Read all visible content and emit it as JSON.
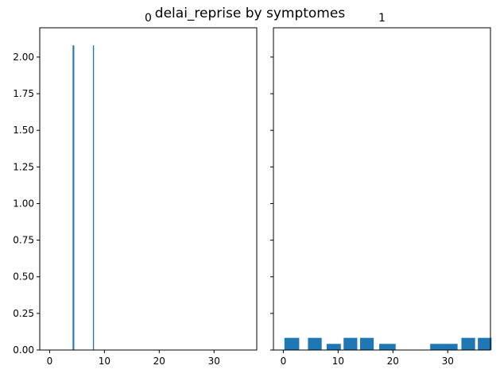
{
  "suptitle": "delai_reprise by symptomes",
  "chart_data": [
    {
      "type": "histogram",
      "title": "0",
      "xlabel": "",
      "ylabel": "",
      "xlim": [
        -1.8,
        37.8
      ],
      "ylim": [
        0,
        2.2
      ],
      "xticks": [
        0,
        10,
        20,
        30
      ],
      "yticks": [
        0.0,
        0.25,
        0.5,
        0.75,
        1.0,
        1.25,
        1.5,
        1.75,
        2.0
      ],
      "ytick_labels": [
        "0.00",
        "0.25",
        "0.50",
        "0.75",
        "1.00",
        "1.25",
        "1.50",
        "1.75",
        "2.00"
      ],
      "color": "#1f77b4",
      "bars": [
        {
          "x0": 4.2,
          "x1": 4.5,
          "height": 2.08
        },
        {
          "x0": 7.9,
          "x1": 8.1,
          "height": 2.08
        }
      ]
    },
    {
      "type": "histogram",
      "title": "1",
      "xlabel": "",
      "ylabel": "",
      "xlim": [
        -1.8,
        37.8
      ],
      "ylim": [
        0,
        2.2
      ],
      "xticks": [
        0,
        10,
        20,
        30
      ],
      "yticks": [
        0.0,
        0.25,
        0.5,
        0.75,
        1.0,
        1.25,
        1.5,
        1.75,
        2.0
      ],
      "ytick_labels_shown": false,
      "color": "#1f77b4",
      "bars": [
        {
          "x0": 0.2,
          "x1": 2.9,
          "height": 0.083
        },
        {
          "x0": 4.5,
          "x1": 7.0,
          "height": 0.083
        },
        {
          "x0": 7.9,
          "x1": 10.5,
          "height": 0.042
        },
        {
          "x0": 11.0,
          "x1": 13.5,
          "height": 0.083
        },
        {
          "x0": 14.0,
          "x1": 16.5,
          "height": 0.083
        },
        {
          "x0": 17.5,
          "x1": 20.5,
          "height": 0.042
        },
        {
          "x0": 20.5,
          "x1": 23.0,
          "height": 0.0
        },
        {
          "x0": 26.8,
          "x1": 31.8,
          "height": 0.042
        },
        {
          "x0": 32.5,
          "x1": 35.0,
          "height": 0.083
        },
        {
          "x0": 35.5,
          "x1": 38.0,
          "height": 0.083
        }
      ]
    }
  ]
}
